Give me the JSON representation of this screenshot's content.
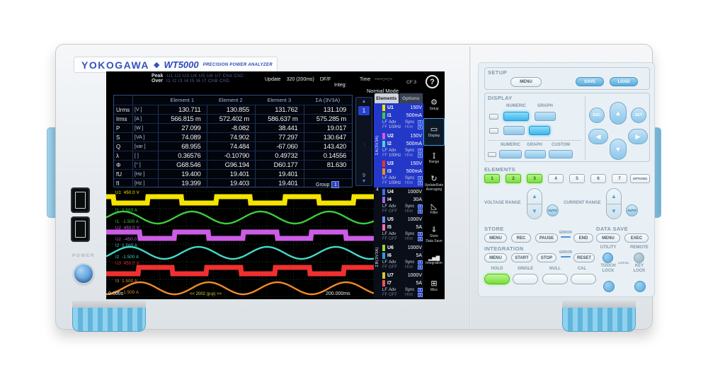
{
  "device": {
    "brand": "YOKOGAWA",
    "diamond": "◆",
    "model": "WT5000",
    "tagline": "PRECISION POWER ANALYZER",
    "power_label": "POWER"
  },
  "screen": {
    "status": {
      "peak_label": "Peak",
      "peak_values": "U1 U2 U3 U4 U5 U6 U7 ChA ChC",
      "over_label": "Over",
      "over_values": "I1 I2 I3 I4 I5 I6 I7 ChB ChD",
      "update_label": "Update",
      "update_value": "320 (200ms)",
      "update_suffix": "DF/F",
      "integ_label": "Integ:",
      "time_label": "Time",
      "time_value": "-----:--:--",
      "mode": "Normal Mode",
      "cf": "CF:3",
      "help": "?"
    },
    "table": {
      "columns": [
        "Element 1",
        "Element 2",
        "Element 3",
        "ΣA (3V3A)"
      ],
      "rows": [
        {
          "name": "Urms",
          "unit": "[V  ]",
          "values": [
            "130.711",
            "130.855",
            "131.762",
            "131.109"
          ]
        },
        {
          "name": "Irms",
          "unit": "[A  ]",
          "values": [
            "566.815 m",
            "572.402 m",
            "586.637 m",
            "575.285 m"
          ]
        },
        {
          "name": "P",
          "unit": "[W  ]",
          "values": [
            "27.099",
            "-8.082",
            "38.441",
            "19.017"
          ]
        },
        {
          "name": "S",
          "unit": "[VA ]",
          "values": [
            "74.089",
            "74.902",
            "77.297",
            "130.647"
          ]
        },
        {
          "name": "Q",
          "unit": "[var ]",
          "values": [
            "68.955",
            "74.484",
            "-67.060",
            "143.420"
          ]
        },
        {
          "name": "λ",
          "unit": "[    ]",
          "values": [
            "0.36576",
            "-0.10790",
            "0.49732",
            "0.14556"
          ]
        },
        {
          "name": "Φ",
          "unit": "[°  ]",
          "values": [
            "G68.546",
            "G96.194",
            "D60.177",
            "81.630"
          ]
        },
        {
          "name": "fU",
          "unit": "[Hz ]",
          "values": [
            "19.400",
            "19.401",
            "19.401",
            ""
          ]
        },
        {
          "name": "fI",
          "unit": "[Hz ]",
          "values": [
            "19.399",
            "19.403",
            "19.401",
            ""
          ]
        }
      ]
    },
    "pager": {
      "up": "▲",
      "current": "1",
      "dots": "···",
      "last": "9",
      "down": "▼"
    },
    "elements_panel": {
      "tab_elements": "Elements",
      "tab_options": "Options",
      "group_a": "ΣA(3V3A)",
      "group_4": "4",
      "group_b": "ΣB(3V3A)",
      "lf": "LF",
      "ff": "FF",
      "adv_label": "Adv",
      "sync_label": "Sync",
      "hrm_label": "Hrm",
      "badge": "1",
      "items": [
        {
          "u": "U1",
          "u_range": "150V",
          "u_color": "#f5e400",
          "i": "I1",
          "i_range": "500mA",
          "i_color": "#3dcc3d",
          "adv": "100Hz",
          "highlighted": true
        },
        {
          "u": "U2",
          "u_range": "150V",
          "u_color": "#cc5ce6",
          "i": "I2",
          "i_range": "500mA",
          "i_color": "#44d9c8",
          "adv": "100Hz",
          "highlighted": true
        },
        {
          "u": "U3",
          "u_range": "150V",
          "u_color": "#f03030",
          "i": "I3",
          "i_range": "500mA",
          "i_color": "#f08a28",
          "adv": "100Hz",
          "highlighted": true
        },
        {
          "u": "U4",
          "u_range": "1000V",
          "u_color": "#3b6ef5",
          "i": "I4",
          "i_range": "30A",
          "i_color": "#a066f0",
          "adv": "OFF",
          "highlighted": false
        },
        {
          "u": "U5",
          "u_range": "1000V",
          "u_color": "#6f8af0",
          "i": "I5",
          "i_range": "5A",
          "i_color": "#f06fb4",
          "adv": "OFF",
          "highlighted": false
        },
        {
          "u": "U6",
          "u_range": "1000V",
          "u_color": "#a0d832",
          "i": "I6",
          "i_range": "5A",
          "i_color": "#2f9de0",
          "adv": "OFF",
          "highlighted": false
        },
        {
          "u": "U7",
          "u_range": "1000V",
          "u_color": "#d8c832",
          "i": "I7",
          "i_range": "5A",
          "i_color": "#f05060",
          "adv": "OFF",
          "highlighted": false
        }
      ]
    },
    "icon_rail": [
      {
        "name": "setup-icon",
        "glyph": "⚙",
        "label": "Setup",
        "label2": "",
        "active": false
      },
      {
        "name": "display-icon",
        "glyph": "▭",
        "label": "Display",
        "label2": "",
        "active": true
      },
      {
        "name": "range-icon",
        "glyph": "I",
        "label": "Range",
        "label2": "",
        "active": false
      },
      {
        "name": "update-rate-icon",
        "glyph": "↻",
        "label": "UpdateRate",
        "label2": "Averaging",
        "active": false
      },
      {
        "name": "filter-icon",
        "glyph": "◺",
        "label": "Filter",
        "label2": "",
        "active": false
      },
      {
        "name": "store-icon",
        "glyph": "⇓",
        "label": "Store",
        "label2": "Data Save",
        "active": false
      },
      {
        "name": "integration-icon",
        "glyph": "▂▅▇",
        "label": "Integration",
        "label2": "",
        "active": false
      },
      {
        "name": "misc-icon",
        "glyph": "⊞",
        "label": "Misc",
        "label2": "",
        "active": false
      }
    ],
    "waveform": {
      "time_start": "0.000s",
      "time_end": "200.000ms",
      "note": "<< 2002 (p-p) >>",
      "group_label": "Group",
      "group_num": "1",
      "cycles": 3.9,
      "traces": [
        {
          "name": "U1",
          "top": "450.0 V",
          "bottom": "-450.0 V",
          "color": "#f5e400",
          "shape": "square",
          "phase": 2.49
        },
        {
          "name": "I1",
          "top": "1.500 A",
          "bottom": "-1.500 A",
          "color": "#3dcc3d",
          "shape": "sine",
          "phase": 0.0
        },
        {
          "name": "U2",
          "top": "450.0 V",
          "bottom": "-450.0 V",
          "color": "#cc5ce6",
          "shape": "square",
          "phase": 0.05
        },
        {
          "name": "I2",
          "top": "1.500 A",
          "bottom": "-1.500 A",
          "color": "#44d9c8",
          "shape": "sine",
          "phase": -0.6
        },
        {
          "name": "U3",
          "top": "450.0 V",
          "bottom": "-450.0 V",
          "color": "#f03030",
          "shape": "square",
          "phase": -2.92
        },
        {
          "name": "I3",
          "top": "1.500 A",
          "bottom": "-1.500 A",
          "color": "#f08a28",
          "shape": "sine",
          "phase": -1.54
        }
      ]
    }
  },
  "panel": {
    "setup": {
      "title": "SETUP",
      "menu": "MENU",
      "save": "SAVE",
      "load": "LOAD"
    },
    "display": {
      "title": "DISPLAY",
      "numeric": "NUMERIC",
      "graph": "GRAPH",
      "custom": "CUSTOM"
    },
    "nav": {
      "esc": "ESC",
      "set": "SET",
      "up": "▲",
      "down": "▼",
      "left": "◀",
      "right": "▶"
    },
    "elements": {
      "title": "ELEMENTS",
      "buttons": [
        "1",
        "2",
        "3",
        "4",
        "5",
        "6",
        "7"
      ],
      "options": "OPTIONS",
      "active_count": 3
    },
    "ranges": {
      "voltage": "VOLTAGE RANGE",
      "current": "CURRENT RANGE",
      "auto": "AUTO",
      "up": "▲",
      "down": "▼"
    },
    "store": {
      "title": "STORE",
      "menu": "MENU",
      "rec": "REC",
      "pause": "PAUSE",
      "error": "ERROR",
      "end": "END"
    },
    "data_save": {
      "title": "DATA SAVE",
      "menu": "MENU",
      "exec": "EXEC"
    },
    "integration": {
      "title": "INTEGRATION",
      "menu": "MENU",
      "start": "START",
      "stop": "STOP",
      "error": "ERROR",
      "reset": "RESET"
    },
    "utility": {
      "utility": "UTILITY",
      "remote": "REMOTE",
      "local": "LOCAL"
    },
    "bottom": {
      "hold": "HOLD",
      "single": "SINGLE",
      "null": "NULL",
      "cal": "CAL"
    },
    "locks": {
      "touch1": "TOUCH",
      "touch2": "LOCK",
      "key1": "KEY",
      "key2": "LOCK"
    }
  }
}
